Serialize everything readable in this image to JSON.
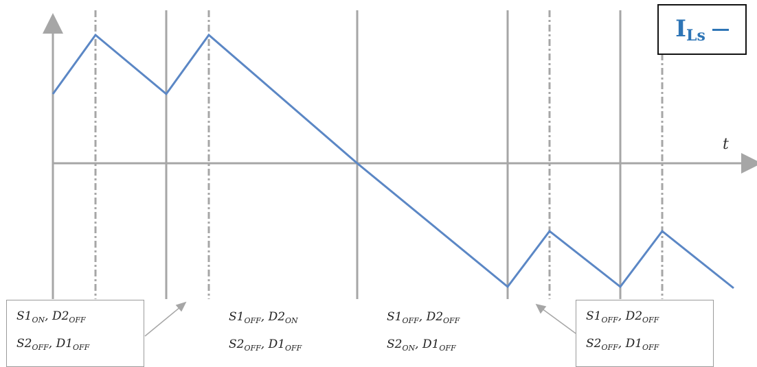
{
  "legend": {
    "symbol": "I",
    "subscript": "Ls",
    "color": "#2e75b6"
  },
  "axis": {
    "time_label": "t"
  },
  "states": [
    {
      "line1": {
        "a": "S1",
        "a_sub": "ON",
        "b": "D2",
        "b_sub": "OFF"
      },
      "line2": {
        "a": "S2",
        "a_sub": "OFF",
        "b": "D1",
        "b_sub": "OFF"
      }
    },
    {
      "line1": {
        "a": "S1",
        "a_sub": "OFF",
        "b": "D2",
        "b_sub": "ON"
      },
      "line2": {
        "a": "S2",
        "a_sub": "OFF",
        "b": "D1",
        "b_sub": "OFF"
      }
    },
    {
      "line1": {
        "a": "S1",
        "a_sub": "OFF",
        "b": "D2",
        "b_sub": "OFF"
      },
      "line2": {
        "a": "S2",
        "a_sub": "ON",
        "b": "D1",
        "b_sub": "OFF"
      }
    },
    {
      "line1": {
        "a": "S1",
        "a_sub": "OFF",
        "b": "D2",
        "b_sub": "OFF"
      },
      "line2": {
        "a": "S2",
        "a_sub": "OFF",
        "b": "D1",
        "b_sub": "OFF"
      }
    }
  ],
  "colors": {
    "waveform": "#5b87c5",
    "axes": "#a6a6a6",
    "grid": "#a6a6a6"
  }
}
